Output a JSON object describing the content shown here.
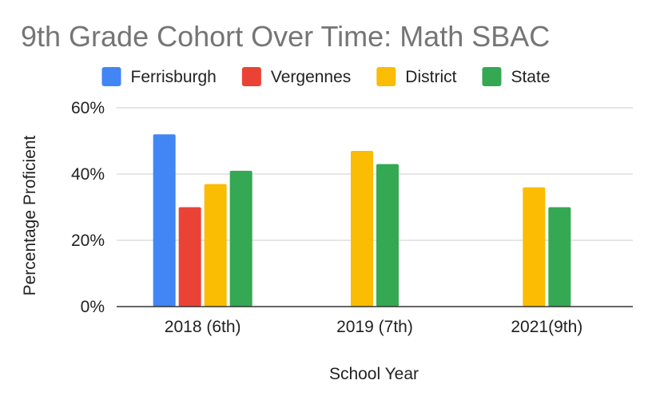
{
  "chart_data": {
    "type": "bar",
    "title": "9th Grade Cohort Over Time: Math SBAC",
    "xlabel": "School Year",
    "ylabel": "Percentage Proficient",
    "categories": [
      "2018 (6th)",
      "2019 (7th)",
      "2021(9th)"
    ],
    "series": [
      {
        "name": "Ferrisburgh",
        "color": "#4285F4",
        "values": [
          52,
          null,
          null
        ]
      },
      {
        "name": "Vergennes",
        "color": "#EA4335",
        "values": [
          30,
          null,
          null
        ]
      },
      {
        "name": "District",
        "color": "#FBBC04",
        "values": [
          37,
          47,
          36
        ]
      },
      {
        "name": "State",
        "color": "#34A853",
        "values": [
          41,
          43,
          30
        ]
      }
    ],
    "ylim": [
      0,
      60
    ],
    "yticks": [
      "0%",
      "20%",
      "40%",
      "60%"
    ],
    "ytick_values": [
      0,
      20,
      40,
      60
    ],
    "grid": true,
    "legend_position": "top"
  }
}
